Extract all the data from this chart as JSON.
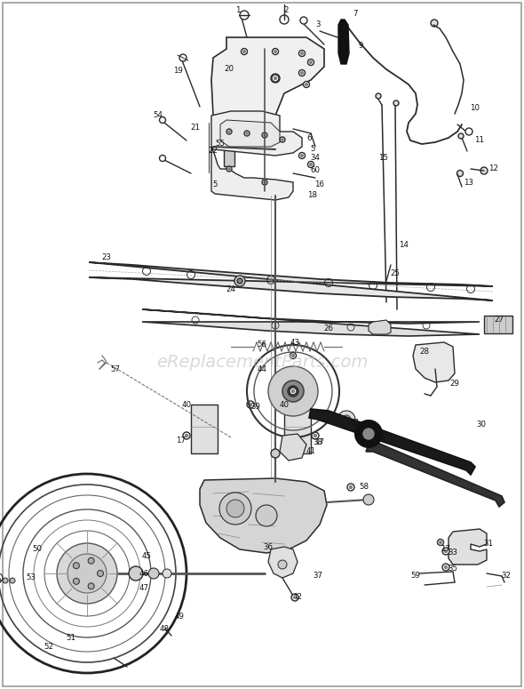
{
  "watermark": "eReplacementParts.com",
  "background_color": "#ffffff",
  "fig_width": 5.9,
  "fig_height": 7.75,
  "dpi": 100,
  "watermark_color": "#bbbbbb",
  "watermark_fontsize": 14,
  "watermark_alpha": 0.55,
  "line_color": "#2a2a2a",
  "lw_main": 1.0,
  "lw_thin": 0.6,
  "lw_thick": 1.8,
  "label_fontsize": 6.5
}
